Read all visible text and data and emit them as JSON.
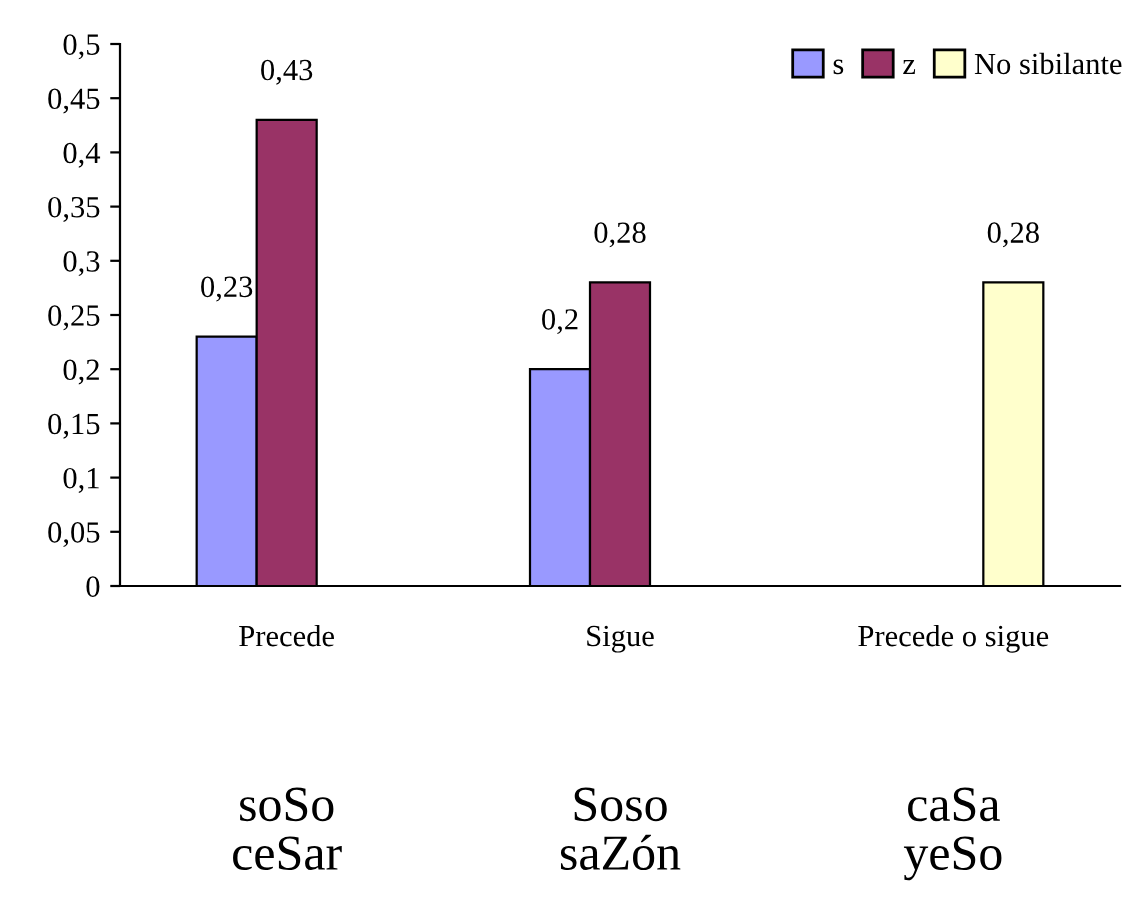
{
  "chart_data": {
    "type": "bar",
    "categories": [
      "Precede",
      "Sigue",
      "Precede o sigue"
    ],
    "series": [
      {
        "name": "s",
        "color": "#9999ff",
        "values": [
          0.23,
          0.2,
          null
        ],
        "value_labels": [
          "0,23",
          "0,2",
          null
        ]
      },
      {
        "name": "z",
        "color": "#993366",
        "values": [
          0.43,
          0.28,
          null
        ],
        "value_labels": [
          "0,43",
          "0,28",
          null
        ]
      },
      {
        "name": "No sibilante",
        "color": "#ffffcc",
        "values": [
          null,
          null,
          0.28
        ],
        "value_labels": [
          null,
          null,
          "0,28"
        ]
      }
    ],
    "ylim": [
      0,
      0.5
    ],
    "yticks": [
      {
        "value": 0,
        "label": "0"
      },
      {
        "value": 0.05,
        "label": "0,05"
      },
      {
        "value": 0.1,
        "label": "0,1"
      },
      {
        "value": 0.15,
        "label": "0,15"
      },
      {
        "value": 0.2,
        "label": "0,2"
      },
      {
        "value": 0.25,
        "label": "0,25"
      },
      {
        "value": 0.3,
        "label": "0,3"
      },
      {
        "value": 0.35,
        "label": "0,35"
      },
      {
        "value": 0.4,
        "label": "0,4"
      },
      {
        "value": 0.45,
        "label": "0,45"
      },
      {
        "value": 0.5,
        "label": "0,5"
      }
    ],
    "grid": false,
    "legend": "top right",
    "annotations": [
      "soSo\nceSar",
      "Soso\nsaZón",
      "caSa\nyeSo"
    ]
  }
}
